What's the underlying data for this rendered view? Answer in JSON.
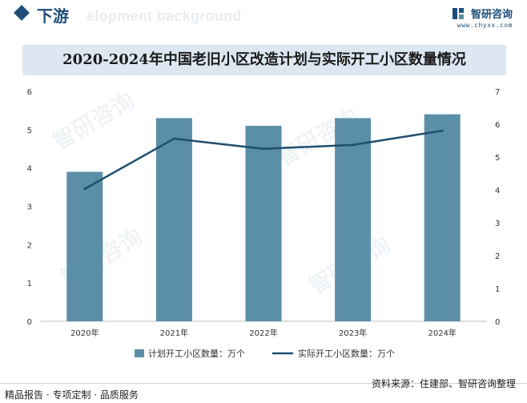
{
  "header": {
    "section_label": "下游",
    "ghost_text": "elopment background",
    "brand_name": "智研咨询",
    "brand_url": "www.chyxx.com"
  },
  "watermark_text": "智研咨询",
  "chart_data": {
    "type": "bar",
    "title": "2020-2024年中国老旧小区改造计划与实际开工小区数量情况",
    "categories": [
      "2020年",
      "2021年",
      "2022年",
      "2023年",
      "2024年"
    ],
    "series": [
      {
        "name": "计划开工小区数量：万个",
        "type": "bar",
        "axis": "left",
        "values": [
          3.9,
          5.3,
          5.1,
          5.3,
          5.4
        ]
      },
      {
        "name": "实际开工小区数量：万个",
        "type": "line",
        "axis": "right",
        "values": [
          4.03,
          5.56,
          5.25,
          5.37,
          5.8
        ]
      }
    ],
    "y_left": {
      "min": 0,
      "max": 6,
      "ticks": [
        "0",
        "1",
        "2",
        "3",
        "4",
        "5",
        "6"
      ]
    },
    "y_right": {
      "min": 0,
      "max": 7,
      "ticks": [
        "0",
        "1",
        "2",
        "3",
        "4",
        "5",
        "6",
        "7"
      ]
    },
    "legend_position": "bottom",
    "colors": {
      "bar": "#5b8fa8",
      "line": "#1f4e6e"
    }
  },
  "footer": {
    "left": "精品报告 · 专项定制 · 品质服务",
    "right": "资料来源：住建部、智研咨询整理"
  }
}
